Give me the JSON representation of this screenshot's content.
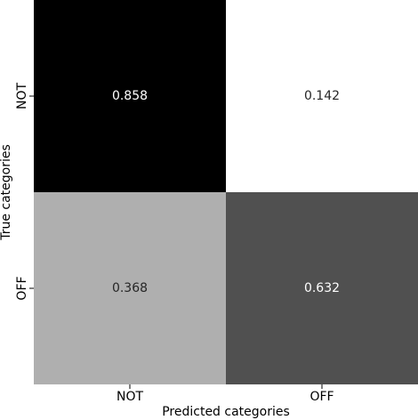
{
  "chart_data": {
    "type": "heatmap",
    "x_label": "Predicted categories",
    "y_label": "True categories",
    "x_categories": [
      "NOT",
      "OFF"
    ],
    "y_categories": [
      "NOT",
      "OFF"
    ],
    "values": [
      [
        0.858,
        0.142
      ],
      [
        0.368,
        0.632
      ]
    ],
    "colormap": "gray_r"
  }
}
